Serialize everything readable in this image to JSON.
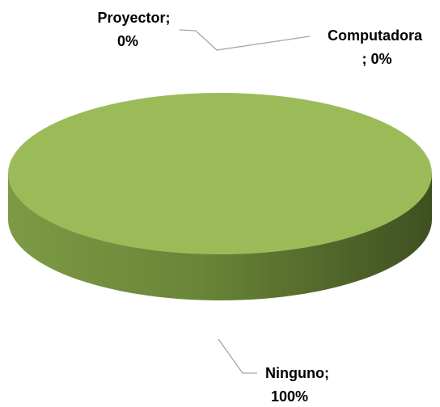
{
  "chart_data": {
    "type": "pie3d",
    "categories": [
      "Proyector",
      "Computadora",
      "Ninguno"
    ],
    "values": [
      0,
      0,
      100
    ],
    "value_labels": [
      "0%",
      "0%",
      "100%"
    ],
    "label_separator": ";",
    "colors": [
      "#4f81bd",
      "#c0504d",
      "#9bbb59"
    ]
  }
}
